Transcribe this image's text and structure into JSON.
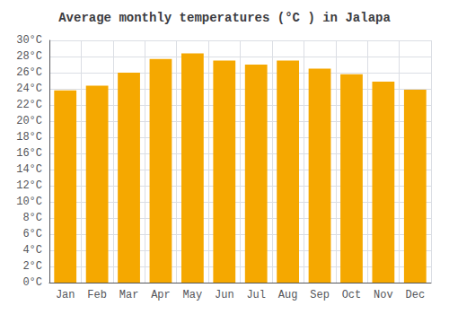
{
  "chart_data": {
    "type": "bar",
    "title": "Average monthly temperatures (°C ) in Jalapa",
    "categories": [
      "Jan",
      "Feb",
      "Mar",
      "Apr",
      "May",
      "Jun",
      "Jul",
      "Aug",
      "Sep",
      "Oct",
      "Nov",
      "Dec"
    ],
    "values": [
      23.8,
      24.4,
      26.0,
      27.7,
      28.4,
      27.5,
      27.0,
      27.5,
      26.5,
      25.8,
      24.9,
      23.9
    ],
    "color": "#F5A800",
    "ylim": [
      0,
      30
    ],
    "yticks": [
      {
        "value": 0,
        "label": "0°C"
      },
      {
        "value": 2,
        "label": "2°C"
      },
      {
        "value": 4,
        "label": "4°C"
      },
      {
        "value": 6,
        "label": "6°C"
      },
      {
        "value": 8,
        "label": "8°C"
      },
      {
        "value": 10,
        "label": "10°C"
      },
      {
        "value": 12,
        "label": "12°C"
      },
      {
        "value": 14,
        "label": "14°C"
      },
      {
        "value": 16,
        "label": "16°C"
      },
      {
        "value": 18,
        "label": "18°C"
      },
      {
        "value": 20,
        "label": "20°C"
      },
      {
        "value": 22,
        "label": "22°C"
      },
      {
        "value": 24,
        "label": "24°C"
      },
      {
        "value": 26,
        "label": "26°C"
      },
      {
        "value": 28,
        "label": "28°C"
      },
      {
        "value": 30,
        "label": "30°C"
      }
    ],
    "grid": true
  }
}
